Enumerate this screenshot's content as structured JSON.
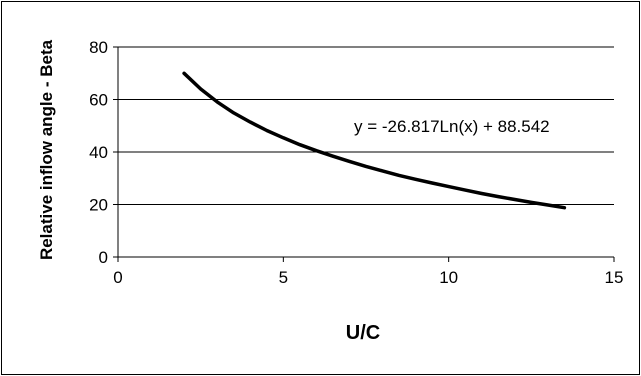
{
  "chart_data": {
    "type": "line",
    "title": "",
    "xlabel": "U/C",
    "ylabel": "Relative inflow angle - Beta",
    "xlim": [
      0,
      15
    ],
    "ylim": [
      0,
      80
    ],
    "xticks": [
      0,
      5,
      10,
      15
    ],
    "yticks": [
      0,
      20,
      40,
      60,
      80
    ],
    "grid": "horizontal",
    "legend": "none",
    "annotation": "y = -26.817Ln(x) + 88.542",
    "x_range": [
      2,
      13.5
    ],
    "series": [
      {
        "x": [
          2.0,
          2.5,
          3.0,
          3.5,
          4.0,
          4.5,
          5.0,
          5.5,
          6.0,
          6.5,
          7.0,
          7.5,
          8.0,
          8.5,
          9.0,
          9.5,
          10.0,
          10.5,
          11.0,
          11.5,
          12.0,
          12.5,
          13.0,
          13.5
        ],
        "y": [
          70.0,
          64.0,
          59.1,
          54.9,
          51.4,
          48.2,
          45.4,
          42.8,
          40.5,
          38.4,
          36.4,
          34.5,
          32.8,
          31.1,
          29.6,
          28.2,
          26.8,
          25.5,
          24.2,
          23.0,
          21.9,
          20.8,
          19.8,
          18.8
        ],
        "color": "#000000"
      }
    ]
  }
}
